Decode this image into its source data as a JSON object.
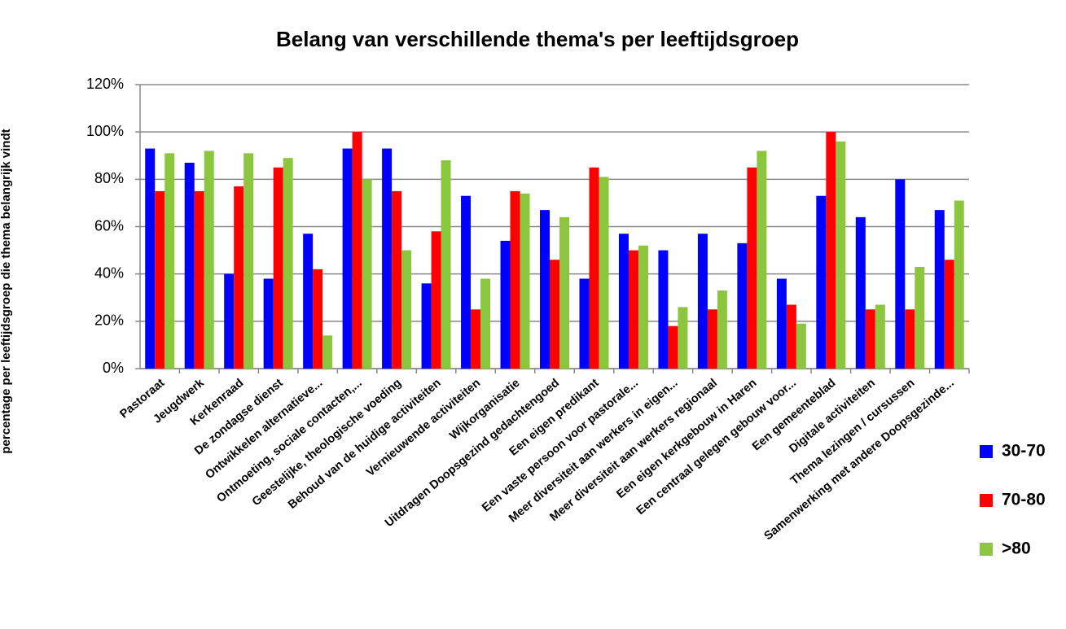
{
  "chart_data": {
    "type": "bar",
    "title": "Belang van verschillende thema's per leeftijdsgroep",
    "y_label": "percentage  per  leeftijdsgroep die thema belangrijk vindt",
    "categories": [
      "Pastoraat",
      "Jeugdwerk",
      "Kerkenraad",
      "De zondagse dienst",
      "Ontwikkelen alternatieve...",
      "Ontmoeting, sociale contacten,...",
      "Geestelijke, theologische voeding",
      "Behoud van de huidige activiteiten",
      "Vernieuwende activiteiten",
      "Wijkorganisatie",
      "Uitdragen Doopsgezind gedachtengoed",
      "Een eigen predikant",
      "Een vaste persoon voor pastorale...",
      "Meer diversiteit aan werkers in eigen...",
      "Meer diversiteit aan werkers regionaal",
      "Een eigen kerkgebouw in Haren",
      "Een centraal gelegen gebouw voor...",
      "Een gemeenteblad",
      "Digitale activiteiten",
      "Thema lezingen / cursussen",
      "Samenwerking met andere Doopsgezinde..."
    ],
    "series": [
      {
        "name": "30-70",
        "color": "#0000ff",
        "values": [
          93,
          87,
          40,
          38,
          57,
          93,
          93,
          36,
          73,
          54,
          67,
          38,
          57,
          50,
          57,
          53,
          38,
          73,
          64,
          80,
          67
        ]
      },
      {
        "name": "70-80",
        "color": "#ff0000",
        "values": [
          75,
          75,
          77,
          85,
          42,
          100,
          75,
          58,
          25,
          75,
          46,
          85,
          50,
          18,
          25,
          85,
          27,
          100,
          25,
          25,
          46
        ]
      },
      {
        "name": ">80",
        "color": "#8cc63f",
        "values": [
          91,
          92,
          91,
          89,
          14,
          80,
          50,
          88,
          38,
          74,
          64,
          81,
          52,
          26,
          33,
          92,
          19,
          96,
          27,
          43,
          71
        ]
      }
    ],
    "ylim": [
      0,
      120
    ],
    "yticks": [
      {
        "value": 0,
        "label": "0%"
      },
      {
        "value": 20,
        "label": "20%"
      },
      {
        "value": 40,
        "label": "40%"
      },
      {
        "value": 60,
        "label": "60%"
      },
      {
        "value": 80,
        "label": "80%"
      },
      {
        "value": 100,
        "label": "100%"
      },
      {
        "value": 120,
        "label": "120%"
      }
    ],
    "grid": true,
    "legend": "right"
  }
}
